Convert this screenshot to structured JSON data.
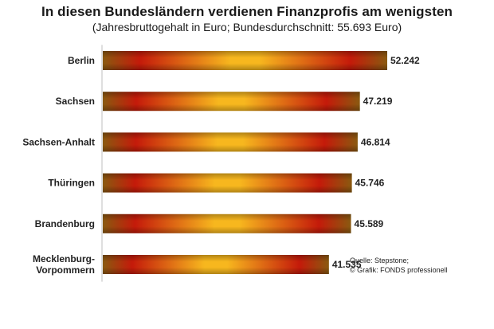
{
  "header": {
    "title": "In diesen Bundesländern verdienen Finanzprofis am wenigsten",
    "subtitle": "(Jahresbruttogehalt in Euro; Bundesdurchschnitt: 55.693 Euro)"
  },
  "source": {
    "line1": "Quelle: Stepstone;",
    "line2": "© Grafik: FONDS professionell"
  },
  "chart_data": {
    "type": "bar",
    "orientation": "horizontal",
    "categories": [
      "Berlin",
      "Sachsen",
      "Sachsen-Anhalt",
      "Thüringen",
      "Brandenburg",
      "Mecklenburg-Vorpommern"
    ],
    "category_lines": [
      [
        "Berlin"
      ],
      [
        "Sachsen"
      ],
      [
        "Sachsen-Anhalt"
      ],
      [
        "Thüringen"
      ],
      [
        "Brandenburg"
      ],
      [
        "Mecklenburg-",
        "Vorpommern"
      ]
    ],
    "values": [
      52242,
      47219,
      46814,
      45746,
      45589,
      41535
    ],
    "value_labels": [
      "52.242",
      "47.219",
      "46.814",
      "45.746",
      "45.589",
      "41.535"
    ],
    "title": "In diesen Bundesländern verdienen Finanzprofis am wenigsten",
    "subtitle": "(Jahresbruttogehalt in Euro; Bundesdurchschnitt: 55.693 Euro)",
    "xlim": [
      0,
      52242
    ],
    "grid": false,
    "legend": "none",
    "colors": {
      "edge": "#8a5a10",
      "red": "#c41a0a",
      "gold": "#f7b71e"
    }
  }
}
